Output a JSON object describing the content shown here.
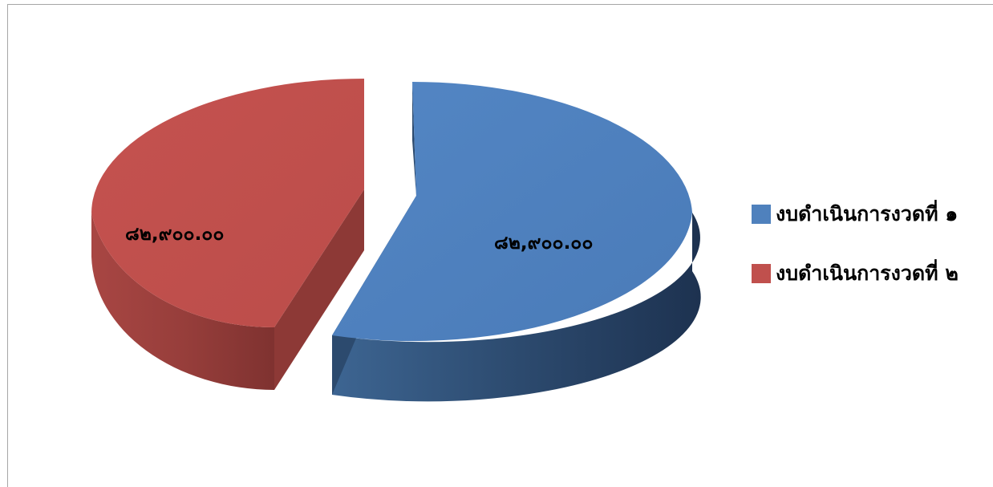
{
  "chart_data": {
    "type": "pie",
    "is_3d": true,
    "exploded": true,
    "slices": [
      {
        "name": "งบดำเนินการงวดที่ ๑",
        "label": "๘๒,๙๐๐.๐๐",
        "value": 82900.0,
        "color": "#4f81bd"
      },
      {
        "name": "งบดำเนินการงวดที่ ๒",
        "label": "๘๒,๙๐๐.๐๐",
        "value": 82900.0,
        "color": "#c0504d"
      }
    ],
    "legend_position": "right"
  }
}
